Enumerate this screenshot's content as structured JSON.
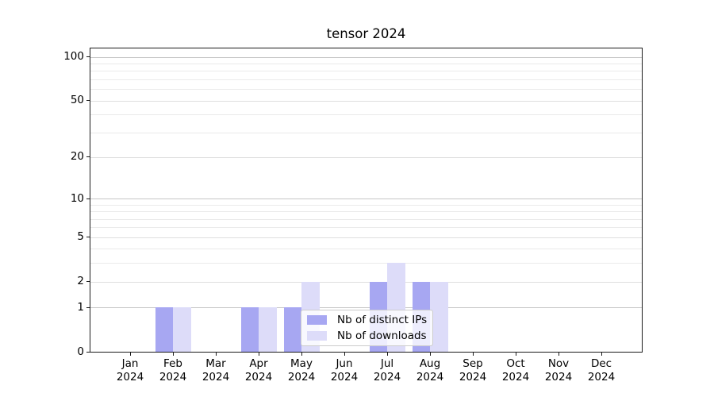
{
  "chart_data": {
    "type": "bar",
    "title": "tensor 2024",
    "categories": [
      "Jan 2024",
      "Feb 2024",
      "Mar 2024",
      "Apr 2024",
      "May 2024",
      "Jun 2024",
      "Jul 2024",
      "Aug 2024",
      "Sep 2024",
      "Oct 2024",
      "Nov 2024",
      "Dec 2024"
    ],
    "series": [
      {
        "name": "Nb of distinct IPs",
        "color": "#a7a7f2",
        "values": [
          0,
          1,
          0,
          1,
          1,
          0,
          2,
          2,
          0,
          0,
          0,
          0
        ]
      },
      {
        "name": "Nb of downloads",
        "color": "#dddcf9",
        "values": [
          0,
          1,
          0,
          1,
          2,
          0,
          3,
          2,
          0,
          0,
          0,
          0
        ]
      }
    ],
    "xlabel": "",
    "ylabel": "",
    "yscale": "log1p",
    "ylim": [
      0,
      114
    ],
    "y_major_ticks": [
      0,
      1,
      2,
      5,
      10,
      20,
      50,
      100
    ],
    "y_tick_labels": [
      "0",
      "1",
      "2",
      "5",
      "10",
      "20",
      "50",
      "100"
    ],
    "y_decade_ticks": [
      1,
      10,
      100
    ],
    "y_minor_gridlines": [
      3,
      4,
      6,
      7,
      8,
      9,
      30,
      40,
      60,
      70,
      80,
      90
    ],
    "grid": true,
    "legend_position": "lower center",
    "colors": {
      "grid_major": "#c6c6c6",
      "grid_mid": "#dedede",
      "grid_minor": "#eaeaea",
      "spine": "#1a1a1a",
      "background": "#ffffff"
    }
  }
}
